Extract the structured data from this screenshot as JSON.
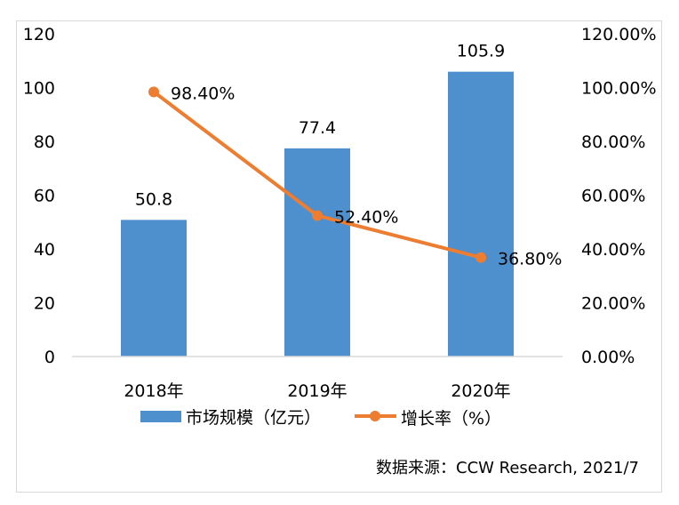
{
  "chart_data": {
    "type": "bar+line",
    "categories": [
      "2018年",
      "2019年",
      "2020年"
    ],
    "series": [
      {
        "name": "市场规模（亿元）",
        "type": "bar",
        "axis": "left",
        "values": [
          50.8,
          77.4,
          105.9
        ],
        "labels": [
          "50.8",
          "77.4",
          "105.9"
        ],
        "color": "#4E8FCE"
      },
      {
        "name": "增长率（%）",
        "type": "line",
        "axis": "right",
        "values": [
          98.4,
          52.4,
          36.8
        ],
        "labels": [
          "98.40%",
          "52.40%",
          "36.80%"
        ],
        "color": "#ED7D31"
      }
    ],
    "ylim_left": [
      0,
      120
    ],
    "yticks_left": [
      "0",
      "20",
      "40",
      "60",
      "80",
      "100",
      "120"
    ],
    "ylim_right": [
      0,
      120
    ],
    "yticks_right": [
      "0.00%",
      "20.00%",
      "40.00%",
      "60.00%",
      "80.00%",
      "100.00%",
      "120.00%"
    ],
    "grid": false,
    "legend": "bottom",
    "source": "数据来源：CCW Research, 2021/7"
  }
}
